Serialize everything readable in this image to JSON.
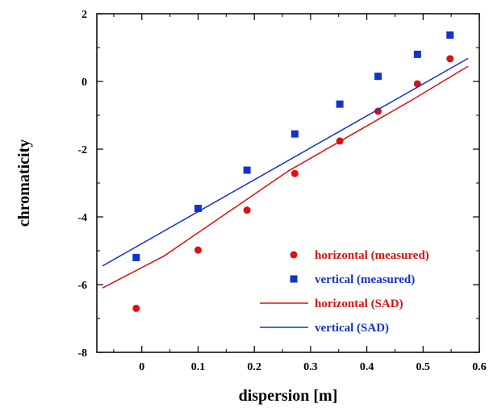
{
  "chart_data": {
    "type": "scatter",
    "xlabel": "dispersion [m]",
    "ylabel": "chromaticity",
    "xlim": [
      -0.08,
      0.6
    ],
    "ylim": [
      -8,
      2
    ],
    "xticks": [
      0,
      0.1,
      0.2,
      0.3,
      0.4,
      0.5,
      0.6
    ],
    "xtick_labels": [
      "0",
      "0.1",
      "0.2",
      "0.3",
      "0.4",
      "0.5",
      "0.6"
    ],
    "yticks": [
      -8,
      -6,
      -4,
      -2,
      0,
      2
    ],
    "ytick_labels": [
      "-8",
      "-6",
      "-4",
      "-2",
      "0",
      "2"
    ],
    "grid": false,
    "legend_position": "bottom-right",
    "series": [
      {
        "name": "horizontal (measured)",
        "kind": "points",
        "marker": "circle",
        "color": "#dd1111",
        "x": [
          -0.01,
          0.1,
          0.187,
          0.272,
          0.352,
          0.42,
          0.49,
          0.548
        ],
        "y": [
          -6.7,
          -4.98,
          -3.8,
          -2.72,
          -1.76,
          -0.88,
          -0.07,
          0.67
        ]
      },
      {
        "name": "vertical (measured)",
        "kind": "points",
        "marker": "square",
        "color": "#1133cc",
        "x": [
          -0.01,
          0.1,
          0.187,
          0.272,
          0.352,
          0.42,
          0.49,
          0.548
        ],
        "y": [
          -5.2,
          -3.75,
          -2.62,
          -1.55,
          -0.67,
          0.15,
          0.8,
          1.37
        ]
      },
      {
        "name": "horizontal (SAD)",
        "kind": "line",
        "color": "#dd1111",
        "x": [
          -0.07,
          0.04,
          0.15,
          0.26,
          0.37,
          0.48,
          0.58
        ],
        "y": [
          -6.1,
          -5.15,
          -3.9,
          -2.65,
          -1.6,
          -0.55,
          0.45
        ]
      },
      {
        "name": "vertical (SAD)",
        "kind": "line",
        "color": "#1133cc",
        "x": [
          -0.07,
          0.58
        ],
        "y": [
          -5.45,
          0.68
        ]
      }
    ]
  }
}
